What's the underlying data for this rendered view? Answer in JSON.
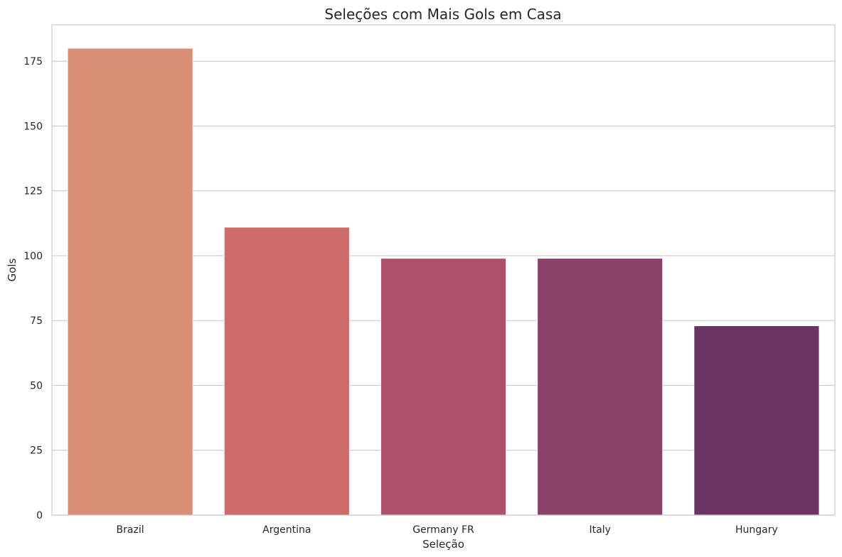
{
  "chart_data": {
    "type": "bar",
    "title": "Seleções com Mais Gols em Casa",
    "xlabel": "Seleção",
    "ylabel": "Gols",
    "categories": [
      "Brazil",
      "Argentina",
      "Germany FR",
      "Italy",
      "Hungary"
    ],
    "values": [
      180,
      111,
      99,
      99,
      73
    ],
    "colors": [
      "#d98e76",
      "#cd6a6a",
      "#b0516b",
      "#8c416b",
      "#6a3563"
    ],
    "ylim": [
      0,
      189
    ],
    "yticks": [
      0,
      25,
      50,
      75,
      100,
      125,
      150,
      175
    ],
    "grid": "horizontal",
    "legend": "none"
  }
}
